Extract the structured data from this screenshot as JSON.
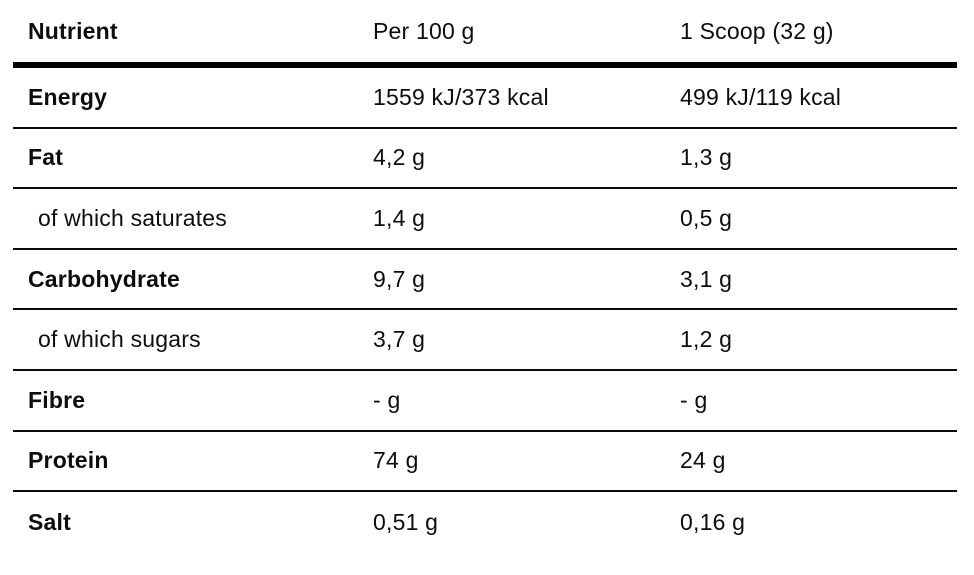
{
  "table": {
    "columns": [
      {
        "label": "Nutrient"
      },
      {
        "label": "Per 100 g"
      },
      {
        "label": "1 Scoop (32 g)"
      }
    ],
    "rows": [
      {
        "nutrient": "Energy",
        "per_100g": "1559 kJ/373 kcal",
        "per_scoop": "499 kJ/119 kcal",
        "emphasis": "bold",
        "indent": false
      },
      {
        "nutrient": "Fat",
        "per_100g": "4,2 g",
        "per_scoop": "1,3 g",
        "emphasis": "bold",
        "indent": false
      },
      {
        "nutrient": "of which saturates",
        "per_100g": "1,4 g",
        "per_scoop": "0,5 g",
        "emphasis": "regular",
        "indent": true
      },
      {
        "nutrient": "Carbohydrate",
        "per_100g": "9,7 g",
        "per_scoop": "3,1 g",
        "emphasis": "bold",
        "indent": false
      },
      {
        "nutrient": "of which sugars",
        "per_100g": "3,7 g",
        "per_scoop": "1,2 g",
        "emphasis": "regular",
        "indent": true
      },
      {
        "nutrient": "Fibre",
        "per_100g": "- g",
        "per_scoop": "- g",
        "emphasis": "bold",
        "indent": false
      },
      {
        "nutrient": "Protein",
        "per_100g": "74 g",
        "per_scoop": "24 g",
        "emphasis": "bold",
        "indent": false
      },
      {
        "nutrient": "Salt",
        "per_100g": "0,51 g",
        "per_scoop": "0,16 g",
        "emphasis": "bold",
        "indent": false
      }
    ],
    "colors": {
      "background": "#ffffff",
      "text": "#0d0d0d",
      "thick_rule": "#000000",
      "thin_rule": "#0a0a0a"
    }
  }
}
